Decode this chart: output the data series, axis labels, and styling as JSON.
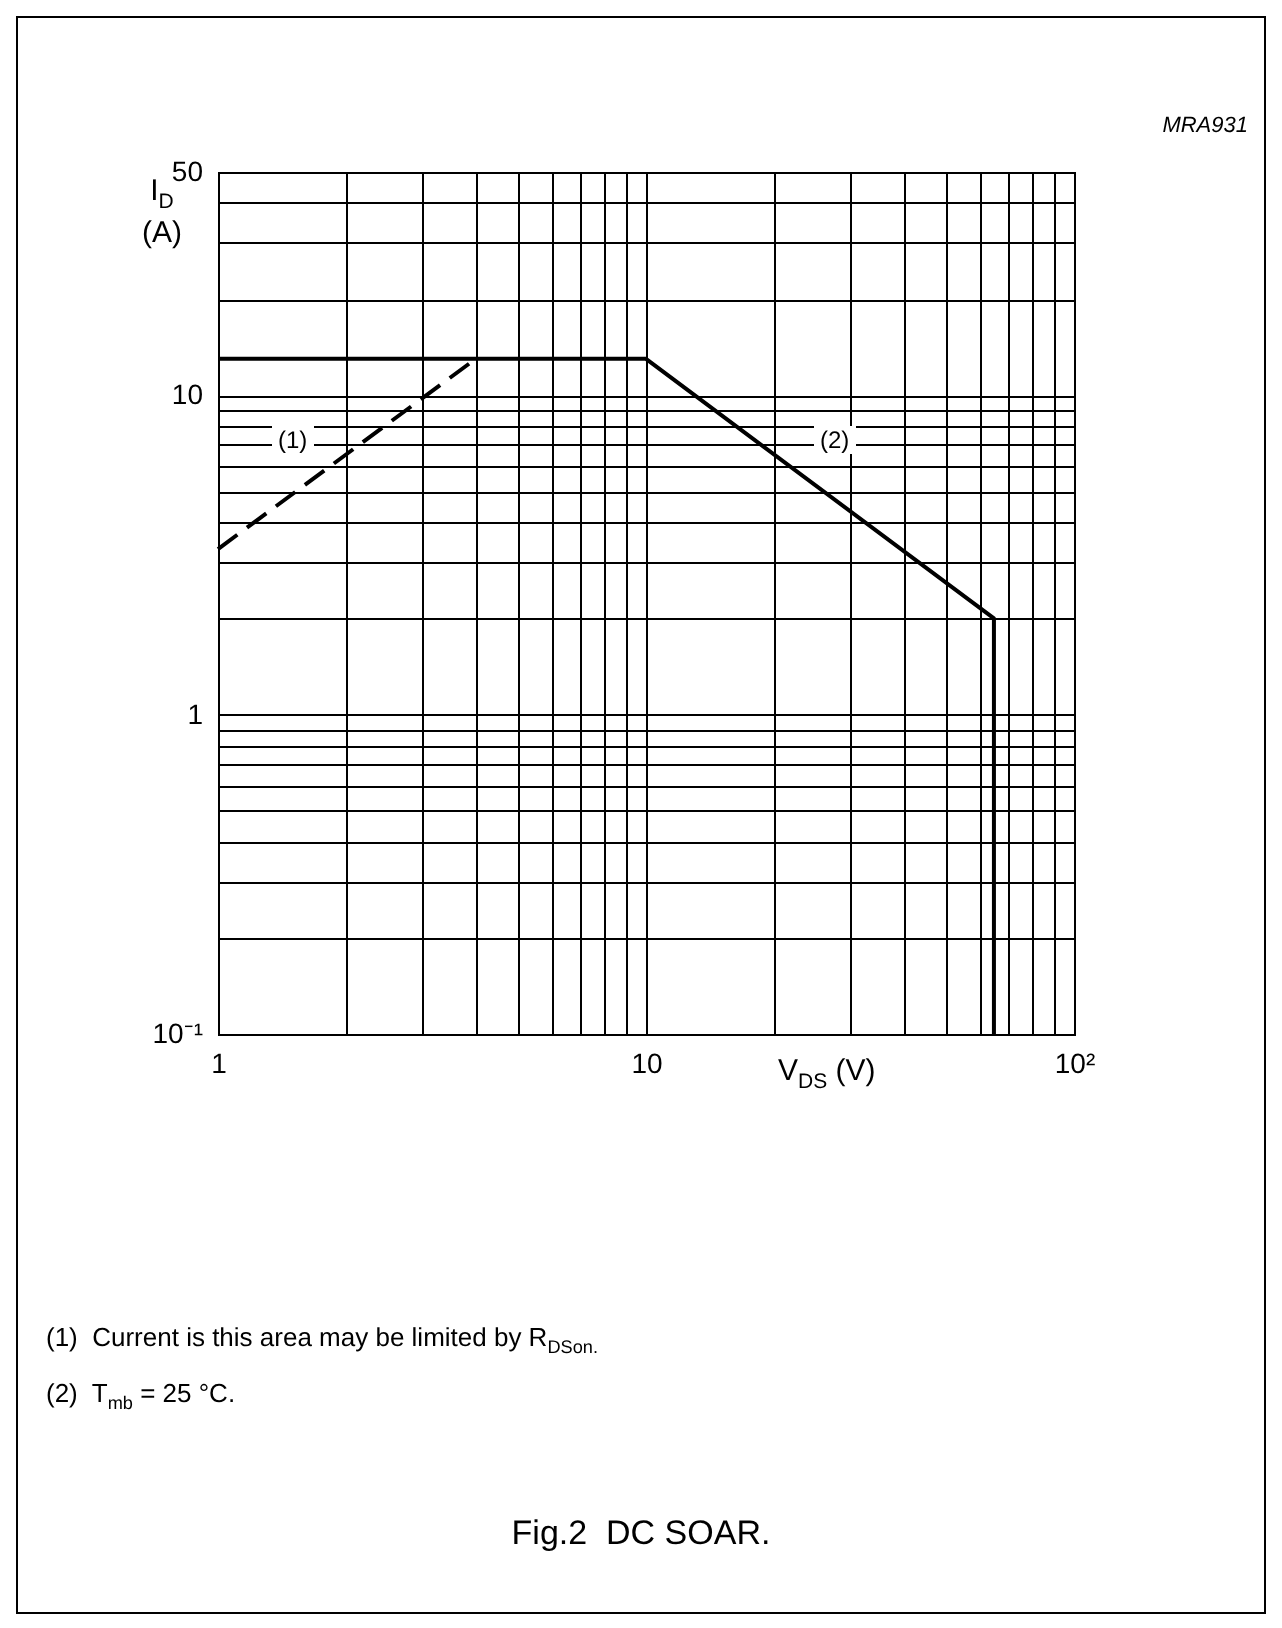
{
  "chart_data": {
    "type": "line",
    "title": "Fig.2  DC SOAR.",
    "xlabel": "V$_{DS}$ (V)",
    "ylabel": "I$_{D}$\n(A)",
    "log": "xy",
    "grid": true,
    "xlim": [
      1,
      100
    ],
    "ylim": [
      0.1,
      50
    ],
    "xticks": [
      1,
      {
        "value": 2,
        "label": null
      },
      {
        "value": 3,
        "label": null
      },
      {
        "value": 4,
        "label": null
      },
      {
        "value": 5,
        "label": null
      },
      {
        "value": 6,
        "label": null
      },
      {
        "value": 7,
        "label": null
      },
      {
        "value": 8,
        "label": null
      },
      {
        "value": 9,
        "label": null
      },
      10,
      {
        "value": 20,
        "label": null
      },
      {
        "value": 30,
        "label": null
      },
      {
        "value": 40,
        "label": null
      },
      {
        "value": 50,
        "label": null
      },
      {
        "value": 60,
        "label": null
      },
      {
        "value": 70,
        "label": null
      },
      {
        "value": 80,
        "label": null
      },
      {
        "value": 90,
        "label": null
      },
      {
        "value": 100,
        "label": "10²"
      }
    ],
    "yticks": [
      {
        "value": 0.1,
        "label": "10⁻¹"
      },
      {
        "value": 0.2,
        "label": null
      },
      {
        "value": 0.3,
        "label": null
      },
      {
        "value": 0.4,
        "label": null
      },
      {
        "value": 0.5,
        "label": null
      },
      {
        "value": 0.6,
        "label": null
      },
      {
        "value": 0.7,
        "label": null
      },
      {
        "value": 0.8,
        "label": null
      },
      {
        "value": 0.9,
        "label": null
      },
      1,
      {
        "value": 2,
        "label": null
      },
      {
        "value": 3,
        "label": null
      },
      {
        "value": 4,
        "label": null
      },
      {
        "value": 5,
        "label": null
      },
      {
        "value": 6,
        "label": null
      },
      {
        "value": 7,
        "label": null
      },
      {
        "value": 8,
        "label": null
      },
      {
        "value": 9,
        "label": null
      },
      10,
      {
        "value": 20,
        "label": null
      },
      {
        "value": 30,
        "label": null
      },
      {
        "value": 40,
        "label": null
      },
      50
    ],
    "series": [
      {
        "color": "#000000",
        "line_style": "dashed",
        "x": [
          1,
          4
        ],
        "values": [
          3.3,
          13
        ]
      },
      {
        "color": "#000000",
        "line_style": "solid",
        "x": [
          1,
          10,
          65,
          65
        ],
        "values": [
          13,
          13,
          2,
          0.1
        ]
      }
    ],
    "annotations": [
      "(1)",
      "(2)",
      "MRA931",
      "(1)  Current is this area may be limited by R$_{DSon.}$",
      "(2)  T$_{mb}$ = 25 °C."
    ]
  }
}
